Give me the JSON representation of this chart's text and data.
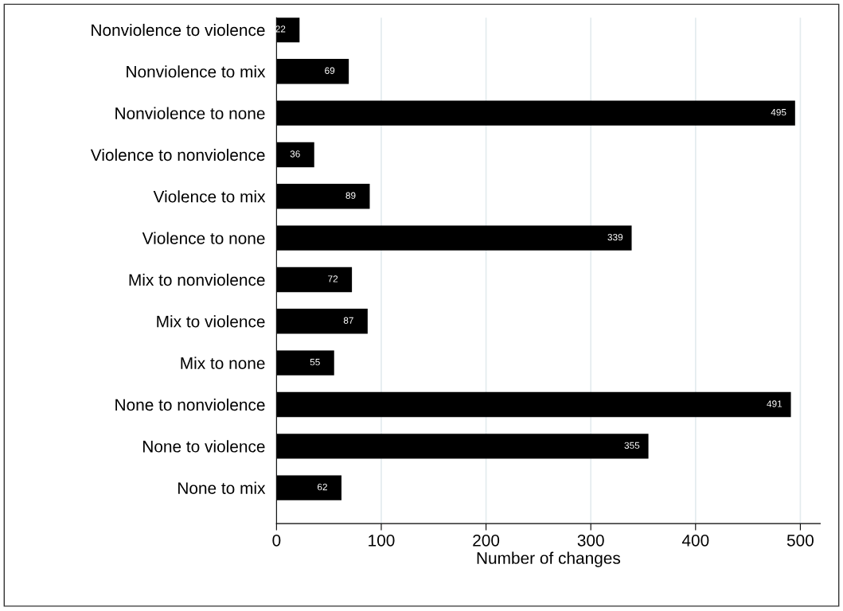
{
  "chart_data": {
    "type": "bar",
    "orientation": "horizontal",
    "xlabel": "Number of changes",
    "categories": [
      "Nonviolence to violence",
      "Nonviolence to mix",
      "Nonviolence to none",
      "Violence to nonviolence",
      "Violence to mix",
      "Violence to none",
      "Mix to nonviolence",
      "Mix to violence",
      "Mix to none",
      "None to nonviolence",
      "None to violence",
      "None to mix"
    ],
    "values": [
      22,
      69,
      495,
      36,
      89,
      339,
      72,
      87,
      55,
      491,
      355,
      62
    ],
    "color": "#000000",
    "xlim": [
      0,
      519
    ],
    "xticks": [
      0,
      100,
      200,
      300,
      400,
      500
    ],
    "grid": "x",
    "data_labels": true
  }
}
